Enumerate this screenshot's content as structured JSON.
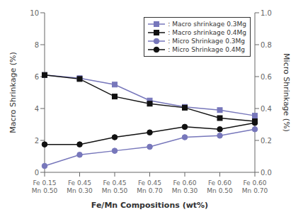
{
  "chart_data": {
    "type": "line",
    "xlabel": "Fe/Mn Compositions (wt%)",
    "ylabel": "Macro Shrinkage (%)",
    "y2label": "Micro Shrinkage (%)",
    "categories": [
      "Fe 0.15\nMn 0.50",
      "Fe 0.45\nMn 0.30",
      "Fe 0.45\nMn 0.50",
      "Fe 0.45\nMn 0.70",
      "Fe 0.60\nMn 0.30",
      "Fe 0.60\nMn 0.50",
      "Fe 0.60\nMn 0.70"
    ],
    "ylim": [
      0,
      10
    ],
    "yticks": [
      0,
      2,
      4,
      6,
      8,
      10
    ],
    "y2lim": [
      0,
      1
    ],
    "y2ticks": [
      {
        "value": 0,
        "label": "0.0"
      },
      0.2,
      0.4,
      0.6,
      0.8,
      {
        "value": 1,
        "label": "1.0"
      }
    ],
    "grid": false,
    "legend": "upper right",
    "series": [
      {
        "name": ": Macro shrinkage 0.3Mg",
        "color": "#7777bb",
        "marker": "square",
        "values": [
          6.1,
          5.9,
          5.5,
          4.5,
          4.1,
          3.9,
          3.55
        ]
      },
      {
        "name": ": Macro shrinkage 0.4Mg",
        "color": "#111111",
        "marker": "square",
        "values": [
          6.1,
          5.85,
          4.75,
          4.3,
          4.05,
          3.4,
          3.2
        ]
      },
      {
        "name": ": Micro Shrinkage 0.3Mg",
        "color": "#7777bb",
        "marker": "circle",
        "axis": "y2",
        "values": [
          0.04,
          0.11,
          0.135,
          0.16,
          0.22,
          0.23,
          0.27
        ]
      },
      {
        "name": ": Micro Shrinkage 0.4Mg",
        "color": "#111111",
        "marker": "circle",
        "axis": "y2",
        "values": [
          0.175,
          0.175,
          0.22,
          0.25,
          0.285,
          0.27,
          0.31
        ]
      }
    ]
  }
}
